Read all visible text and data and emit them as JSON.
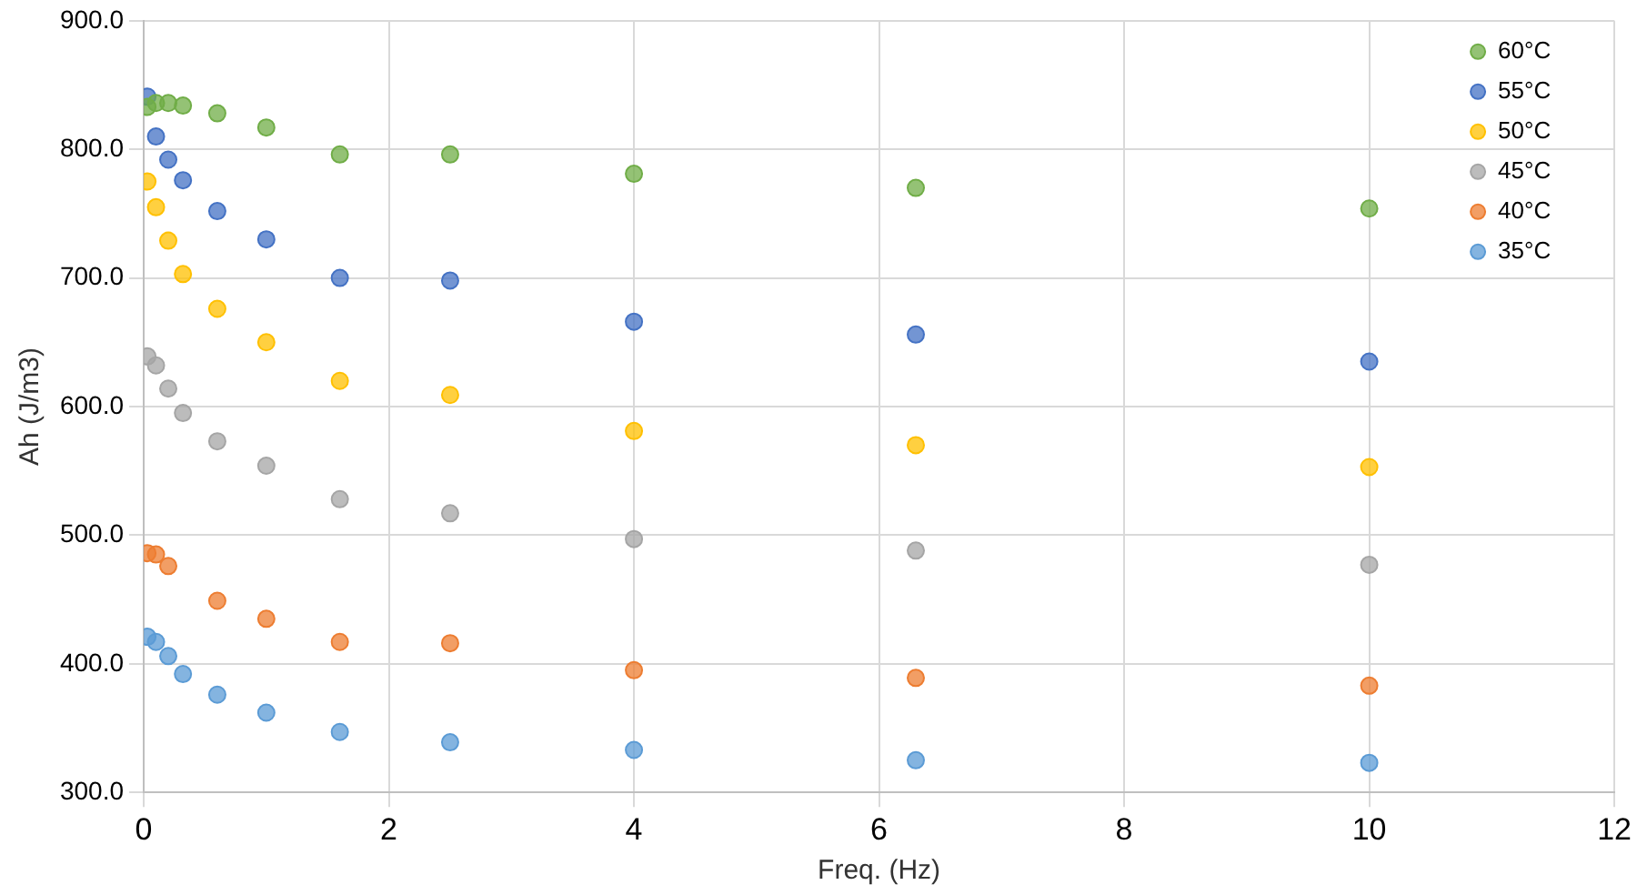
{
  "chart_data": {
    "type": "scatter",
    "xlabel": "Freq. (Hz)",
    "ylabel": "Ah (J/m3)",
    "x": [
      0.03,
      0.1,
      0.2,
      0.32,
      0.6,
      1,
      1.6,
      2.5,
      4,
      6.3,
      10
    ],
    "series": [
      {
        "name": "60°C",
        "color": "#70ad47",
        "values": [
          833,
          836,
          836,
          834,
          828,
          817,
          796,
          796,
          781,
          770,
          754
        ]
      },
      {
        "name": "55°C",
        "color": "#4472c4",
        "values": [
          841,
          810,
          792,
          776,
          752,
          730,
          700,
          698,
          666,
          656,
          635
        ]
      },
      {
        "name": "50°C",
        "color": "#ffc000",
        "values": [
          775,
          755,
          729,
          703,
          676,
          650,
          620,
          609,
          581,
          570,
          553
        ]
      },
      {
        "name": "45°C",
        "color": "#a5a5a5",
        "values": [
          639,
          632,
          614,
          595,
          573,
          554,
          528,
          517,
          497,
          488,
          477
        ]
      },
      {
        "name": "40°C",
        "color": "#ed7d31",
        "values": [
          486,
          485,
          476,
          null,
          449,
          435,
          417,
          416,
          395,
          389,
          383
        ]
      },
      {
        "name": "35°C",
        "color": "#5b9bd5",
        "values": [
          421,
          417,
          406,
          392,
          376,
          362,
          347,
          339,
          333,
          325,
          323
        ]
      }
    ],
    "xlim": [
      0,
      12
    ],
    "xticks": [
      0,
      2,
      4,
      6,
      8,
      10,
      12
    ],
    "ylim": [
      300,
      900
    ],
    "yticks": [
      {
        "value": 300,
        "label": "300.0"
      },
      {
        "value": 400,
        "label": "400.0"
      },
      {
        "value": 500,
        "label": "500.0"
      },
      {
        "value": 600,
        "label": "600.0"
      },
      {
        "value": 700,
        "label": "700.0"
      },
      {
        "value": 800,
        "label": "800.0"
      },
      {
        "value": 900,
        "label": "900.0"
      }
    ],
    "grid": true,
    "legend": "top right",
    "marker": "circle"
  }
}
